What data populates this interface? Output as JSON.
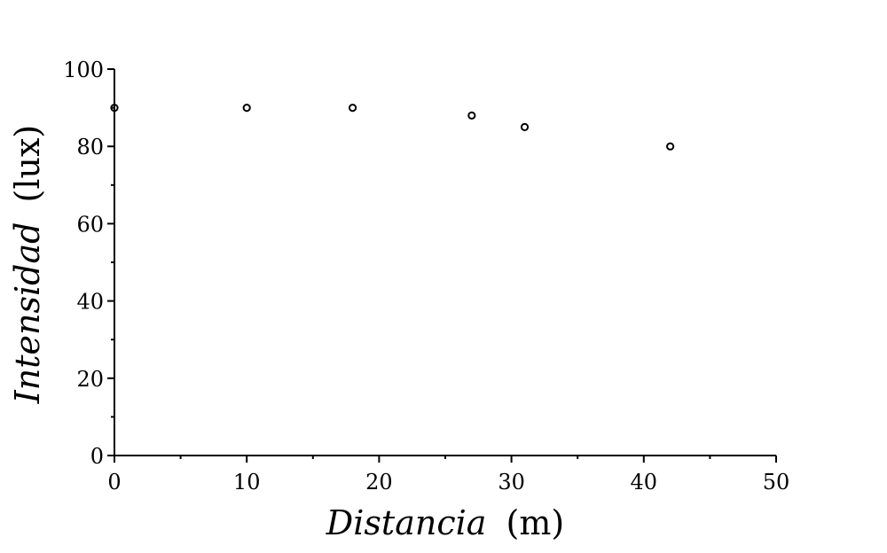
{
  "chart_data": {
    "type": "scatter",
    "title": "",
    "xlabel": {
      "main": "Distancia",
      "unit": "(m)"
    },
    "ylabel": {
      "main": "Intensidad",
      "unit": "(lux)"
    },
    "xlim": [
      0,
      50
    ],
    "ylim": [
      0,
      100
    ],
    "x_ticks": [
      0,
      10,
      20,
      30,
      40,
      50
    ],
    "x_minor_ticks": [
      5,
      15,
      25,
      35,
      45
    ],
    "y_ticks": [
      0,
      20,
      40,
      60,
      80,
      100
    ],
    "y_minor_ticks": [
      10,
      30,
      50,
      70,
      90
    ],
    "x_tick_labels": [
      "0",
      "10",
      "20",
      "30",
      "40",
      "50"
    ],
    "y_tick_labels": [
      "0",
      "20",
      "40",
      "60",
      "80",
      "100"
    ],
    "grid": false,
    "legend": "none",
    "marker": "open-circle",
    "color": "#000000",
    "series": [
      {
        "x": [
          0,
          10,
          18,
          27,
          31,
          42
        ],
        "y": [
          90,
          90,
          90,
          88,
          85,
          80
        ]
      }
    ]
  }
}
